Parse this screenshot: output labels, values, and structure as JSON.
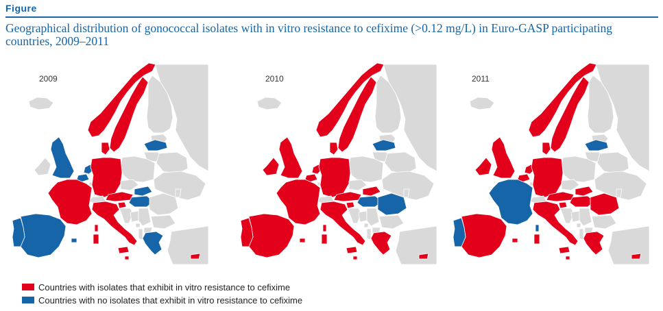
{
  "header": {
    "figure_label": "Figure",
    "title": "Geographical distribution of gonococcal isolates with in vitro resistance to cefixime (>0.12 mg/L) in Euro-GASP participating countries, 2009–2011"
  },
  "colors": {
    "resistant": "#e3001b",
    "not_resistant": "#1565a8",
    "not_participating": "#d9d9d9",
    "sea": "#ffffff",
    "border": "#ffffff"
  },
  "maps": [
    {
      "year": "2009",
      "resistant": [
        "Norway",
        "Sweden",
        "Denmark",
        "Germany",
        "France",
        "Italy",
        "Austria",
        "Slovenia",
        "Malta",
        "Cyprus"
      ],
      "not_resistant": [
        "United Kingdom",
        "Belgium",
        "Netherlands",
        "Latvia",
        "Slovakia",
        "Hungary",
        "Spain",
        "Portugal",
        "Greece"
      ]
    },
    {
      "year": "2010",
      "resistant": [
        "Norway",
        "Sweden",
        "Denmark",
        "Ireland",
        "United Kingdom",
        "Belgium",
        "Netherlands",
        "Germany",
        "France",
        "Austria",
        "Italy",
        "Slovenia",
        "Spain",
        "Portugal",
        "Slovakia",
        "Greece",
        "Malta",
        "Cyprus"
      ],
      "not_resistant": [
        "Latvia",
        "Hungary",
        "Romania"
      ]
    },
    {
      "year": "2011",
      "resistant": [
        "Norway",
        "Sweden",
        "Denmark",
        "Ireland",
        "United Kingdom",
        "Belgium",
        "Netherlands",
        "Germany",
        "Austria",
        "Slovakia",
        "Hungary",
        "Romania",
        "Slovenia",
        "Italy",
        "Spain",
        "Greece",
        "Malta",
        "Cyprus"
      ],
      "not_resistant": [
        "France",
        "Portugal",
        "Latvia"
      ]
    }
  ],
  "legend": {
    "resistant_label": "Countries with isolates that exhibit in vitro resistance to cefixime",
    "not_resistant_label": "Countries with no isolates that exhibit in vitro resistance to cefixime"
  }
}
